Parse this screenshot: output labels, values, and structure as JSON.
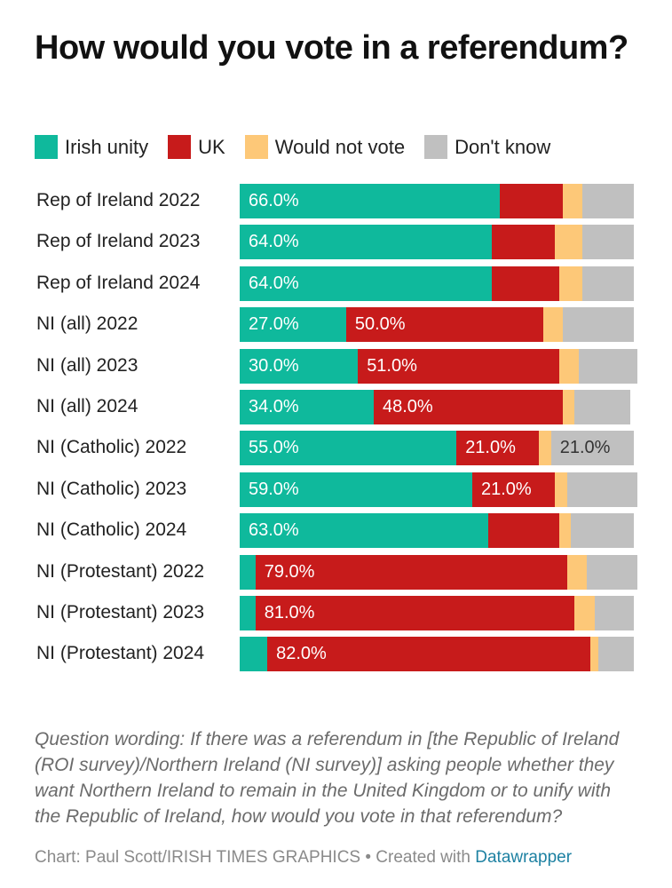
{
  "chart_data": {
    "type": "bar",
    "orientation": "horizontal",
    "stacked": true,
    "title": "How would you vote in a referendum?",
    "xlabel": "",
    "ylabel": "",
    "xlim": [
      0,
      100
    ],
    "grid": false,
    "legend_position": "top-left",
    "categories": [
      "Rep of Ireland 2022",
      "Rep of Ireland 2023",
      "Rep of Ireland 2024",
      "NI (all) 2022",
      "NI (all) 2023",
      "NI (all) 2024",
      "NI (Catholic) 2022",
      "NI (Catholic) 2023",
      "NI (Catholic) 2024",
      "NI (Protestant) 2022",
      "NI (Protestant) 2023",
      "NI (Protestant) 2024"
    ],
    "series": [
      {
        "name": "Irish unity",
        "color": "#0fb99c",
        "values": [
          66,
          64,
          64,
          27,
          30,
          34,
          55,
          59,
          63,
          4,
          4,
          7
        ],
        "labels": [
          "66.0%",
          "64.0%",
          "64.0%",
          "27.0%",
          "30.0%",
          "34.0%",
          "55.0%",
          "59.0%",
          "63.0%",
          "",
          "",
          ""
        ]
      },
      {
        "name": "UK",
        "color": "#c71b1b",
        "values": [
          16,
          16,
          17,
          50,
          51,
          48,
          21,
          21,
          18,
          79,
          81,
          82
        ],
        "labels": [
          "",
          "",
          "",
          "50.0%",
          "51.0%",
          "48.0%",
          "21.0%",
          "21.0%",
          "",
          "79.0%",
          "81.0%",
          "82.0%"
        ]
      },
      {
        "name": "Would not vote",
        "color": "#fdc878",
        "values": [
          5,
          7,
          6,
          5,
          5,
          3,
          3,
          3,
          3,
          5,
          5,
          2
        ],
        "labels": [
          "",
          "",
          "",
          "",
          "",
          "",
          "",
          "",
          "",
          "",
          "",
          ""
        ]
      },
      {
        "name": "Don't know",
        "color": "#c0c0c0",
        "values": [
          13,
          13,
          13,
          18,
          15,
          14,
          21,
          18,
          16,
          13,
          10,
          9
        ],
        "labels": [
          "",
          "",
          "",
          "",
          "",
          "",
          "21.0%",
          "",
          "",
          "",
          "",
          ""
        ]
      }
    ]
  },
  "notes": "Question wording: If there was a referendum in [the Republic of Ireland (ROI survey)/Northern Ireland (NI survey)] asking people whether they want Northern Ireland to remain in the United Kingdom or to unify with the Republic of Ireland, how would you vote in that referendum?",
  "credit": {
    "prefix": "Chart: Paul Scott/IRISH TIMES GRAPHICS • Created with ",
    "link_text": "Datawrapper",
    "link_color": "#1d81a2"
  }
}
